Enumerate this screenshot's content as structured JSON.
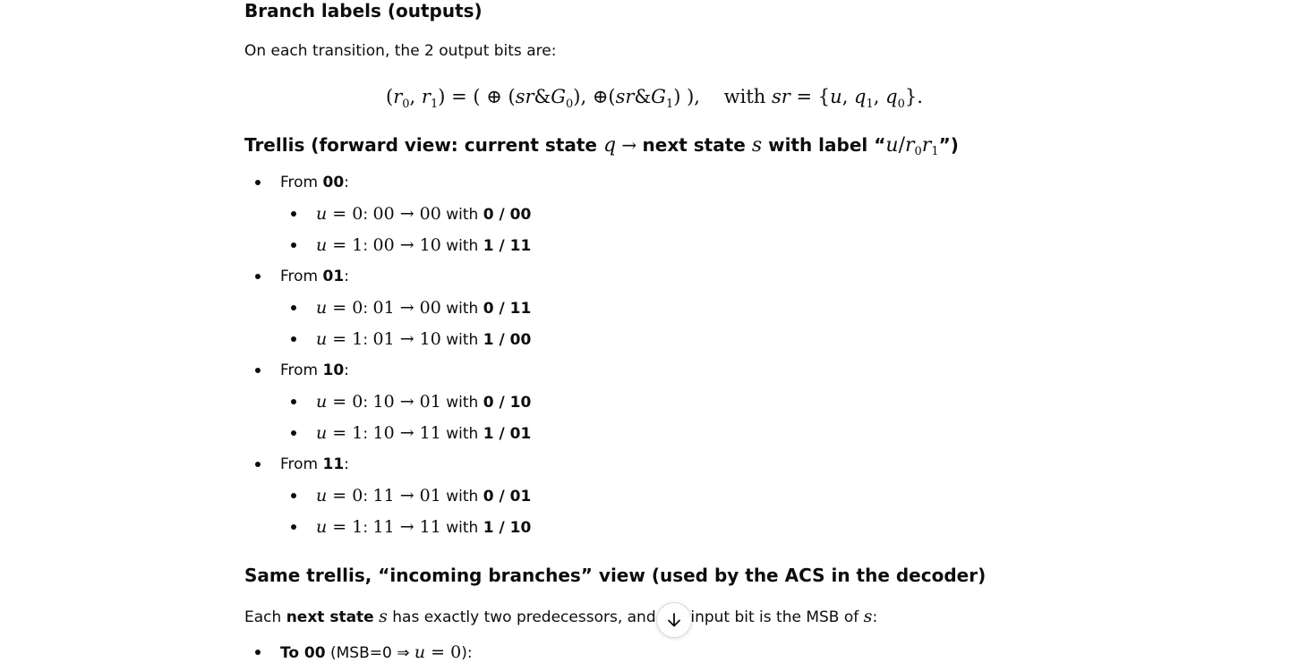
{
  "section1": {
    "heading": "Branch labels (outputs)",
    "intro": "On each transition, the 2 output bits are:",
    "with_word": "with"
  },
  "section2": {
    "heading_start": "Trellis (forward view: current state ",
    "heading_mid1": " next state ",
    "heading_mid2": " with label “",
    "heading_end": "”)",
    "groups": [
      {
        "prefix": "From ",
        "state": "00",
        "branches": [
          {
            "u": "0",
            "from": "00",
            "to": "00",
            "label": "0 / 00"
          },
          {
            "u": "1",
            "from": "00",
            "to": "10",
            "label": "1 / 11"
          }
        ]
      },
      {
        "prefix": "From ",
        "state": "01",
        "branches": [
          {
            "u": "0",
            "from": "01",
            "to": "00",
            "label": "0 / 11"
          },
          {
            "u": "1",
            "from": "01",
            "to": "10",
            "label": "1 / 00"
          }
        ]
      },
      {
        "prefix": "From ",
        "state": "10",
        "branches": [
          {
            "u": "0",
            "from": "10",
            "to": "01",
            "label": "0 / 10"
          },
          {
            "u": "1",
            "from": "10",
            "to": "11",
            "label": "1 / 01"
          }
        ]
      },
      {
        "prefix": "From ",
        "state": "11",
        "branches": [
          {
            "u": "0",
            "from": "11",
            "to": "01",
            "label": "0 / 01"
          },
          {
            "u": "1",
            "from": "11",
            "to": "11",
            "label": "1 / 10"
          }
        ]
      }
    ],
    "with_word": " with "
  },
  "section3": {
    "heading": "Same trellis, “incoming branches” view (used by the ACS in the decoder)",
    "para_start": "Each ",
    "para_bold": "next state",
    "para_mid": " has exactly two predecessors, and ",
    "para_hidden": "the",
    "para_end": " input bit is the MSB of ",
    "bullet_bold": "To 00",
    "bullet_rest": " (MSB=0 ⇒ "
  },
  "scroll_button": {
    "icon": "arrow-down-icon"
  }
}
